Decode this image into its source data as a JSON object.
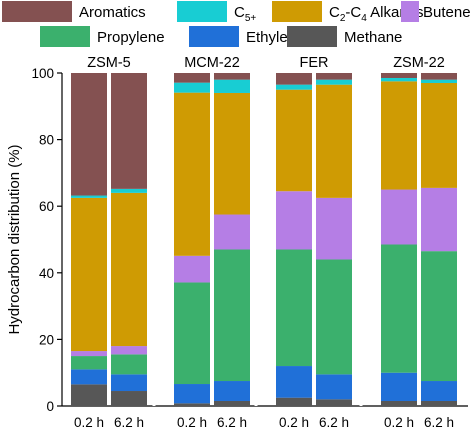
{
  "chart_data": {
    "type": "bar",
    "stacked": true,
    "ylabel": "Hydrocarbon distribution (%)",
    "ylim": [
      0,
      100
    ],
    "yticks": [
      0,
      20,
      40,
      60,
      80,
      100
    ],
    "legend": {
      "placement": "top",
      "entries": [
        {
          "key": "aromatics",
          "label": "Aromatics",
          "color": "#845151"
        },
        {
          "key": "c5",
          "label": "C",
          "sub": "5+",
          "color": "#18cdd3"
        },
        {
          "key": "alkanes",
          "label_parts": [
            {
              "t": "C"
            },
            {
              "t": "2",
              "sub": true
            },
            {
              "t": "-C"
            },
            {
              "t": "4",
              "sub": true
            },
            {
              "t": " Alkanes"
            }
          ],
          "color": "#cf9b03"
        },
        {
          "key": "butene",
          "label": "Butene",
          "color": "#b57ee5"
        },
        {
          "key": "propylene",
          "label": "Propylene",
          "color": "#3bb06d"
        },
        {
          "key": "ethylene",
          "label": "Ethylene",
          "color": "#2070d8"
        },
        {
          "key": "methane",
          "label": "Methane",
          "color": "#575757"
        }
      ]
    },
    "stack_order": [
      "methane",
      "ethylene",
      "propylene",
      "butene",
      "alkanes",
      "c5",
      "aromatics"
    ],
    "groups": [
      {
        "name": "ZSM-5",
        "bars": [
          {
            "label": "0.2 h",
            "values": {
              "methane": 6.5,
              "ethylene": 4.5,
              "propylene": 4.0,
              "butene": 1.5,
              "alkanes": 46.0,
              "c5": 0.7,
              "aromatics": 36.8
            }
          },
          {
            "label": "6.2 h",
            "values": {
              "methane": 4.5,
              "ethylene": 5.0,
              "propylene": 6.0,
              "butene": 2.5,
              "alkanes": 46.0,
              "c5": 1.2,
              "aromatics": 34.8
            }
          }
        ]
      },
      {
        "name": "MCM-22",
        "bars": [
          {
            "label": "0.2 h",
            "values": {
              "methane": 0.8,
              "ethylene": 5.8,
              "propylene": 30.5,
              "butene": 8.0,
              "alkanes": 49.0,
              "c5": 3.0,
              "aromatics": 2.9
            }
          },
          {
            "label": "6.2 h",
            "values": {
              "methane": 1.5,
              "ethylene": 6.0,
              "propylene": 39.5,
              "butene": 10.5,
              "alkanes": 36.5,
              "c5": 4.0,
              "aromatics": 2.0
            }
          }
        ]
      },
      {
        "name": "FER",
        "bars": [
          {
            "label": "0.2 h",
            "values": {
              "methane": 2.5,
              "ethylene": 9.5,
              "propylene": 35.0,
              "butene": 17.5,
              "alkanes": 30.5,
              "c5": 1.5,
              "aromatics": 3.5
            }
          },
          {
            "label": "6.2 h",
            "values": {
              "methane": 2.0,
              "ethylene": 7.5,
              "propylene": 34.5,
              "butene": 18.5,
              "alkanes": 34.0,
              "c5": 1.5,
              "aromatics": 2.0
            }
          }
        ]
      },
      {
        "name": "ZSM-22",
        "bars": [
          {
            "label": "0.2 h",
            "values": {
              "methane": 1.5,
              "ethylene": 8.5,
              "propylene": 38.5,
              "butene": 16.5,
              "alkanes": 32.5,
              "c5": 1.0,
              "aromatics": 1.5
            }
          },
          {
            "label": "6.2 h",
            "values": {
              "methane": 1.5,
              "ethylene": 6.0,
              "propylene": 39.0,
              "butene": 19.0,
              "alkanes": 31.5,
              "c5": 1.0,
              "aromatics": 2.0
            }
          }
        ]
      }
    ]
  }
}
